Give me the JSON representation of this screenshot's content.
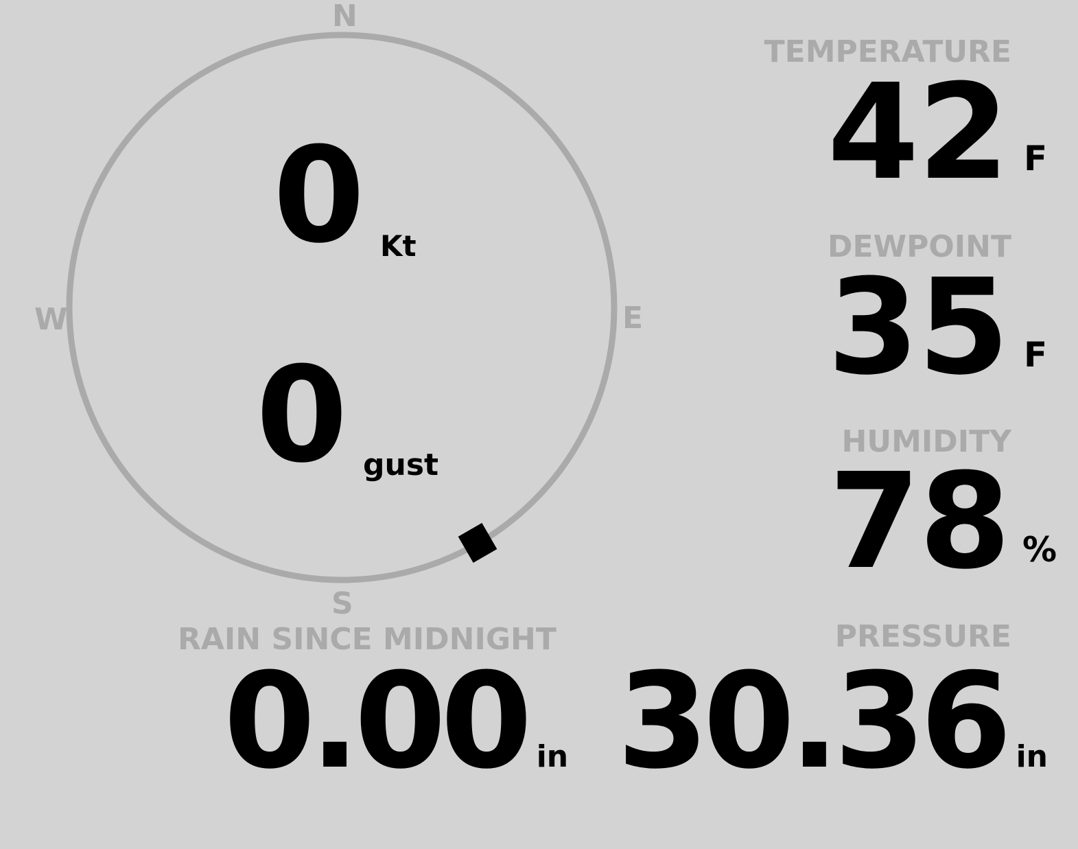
{
  "wind": {
    "compass": {
      "n": "N",
      "e": "E",
      "s": "S",
      "w": "W"
    },
    "direction_degrees": 150,
    "speed": "0",
    "speed_unit": "Kt",
    "gust": "0",
    "gust_unit": "gust",
    "ring_color": "#aaaaaa"
  },
  "temperature": {
    "label": "TEMPERATURE",
    "value": "42",
    "unit": "F"
  },
  "dewpoint": {
    "label": "DEWPOINT",
    "value": "35",
    "unit": "F"
  },
  "humidity": {
    "label": "HUMIDITY",
    "value": "78",
    "unit": "%"
  },
  "rain": {
    "label": "RAIN SINCE MIDNIGHT",
    "value": "0.00",
    "unit": "in"
  },
  "pressure": {
    "label": "PRESSURE",
    "value": "30.36",
    "unit": "in"
  },
  "colors": {
    "background": "#d3d3d3",
    "label": "#aaaaaa",
    "value": "#000000"
  }
}
